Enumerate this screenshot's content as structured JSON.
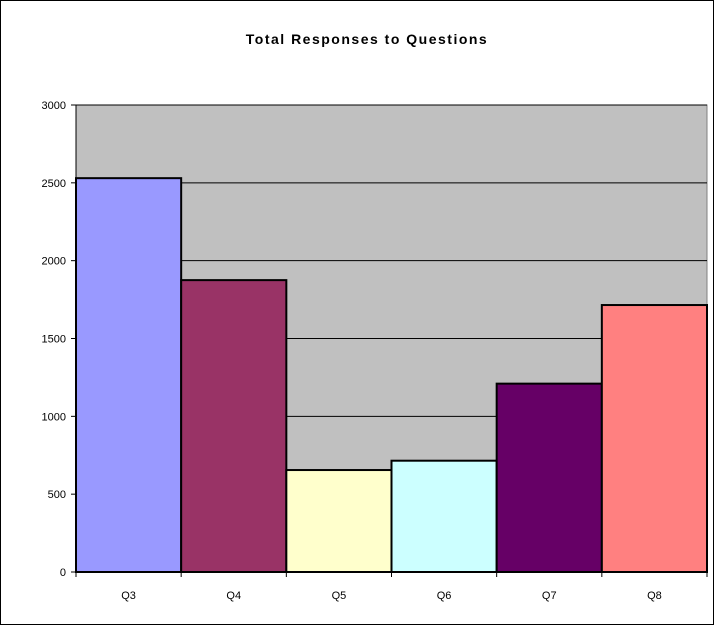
{
  "chart_data": {
    "type": "bar",
    "title": "Total Responses to Questions",
    "xlabel": "",
    "ylabel": "",
    "categories": [
      "Q3",
      "Q4",
      "Q5",
      "Q6",
      "Q7",
      "Q8"
    ],
    "values": [
      2530,
      1875,
      655,
      715,
      1210,
      1715
    ],
    "colors": [
      "#9999ff",
      "#993366",
      "#ffffcc",
      "#ccffff",
      "#660066",
      "#ff8080"
    ],
    "ylim": [
      0,
      3000
    ],
    "yticks": [
      "0",
      "500",
      "1000",
      "1500",
      "2000",
      "2500",
      "3000"
    ],
    "ytick_values": [
      0,
      500,
      1000,
      1500,
      2000,
      2500,
      3000
    ],
    "plot_background": "#c0c0c0",
    "grid": true,
    "legend": "none"
  }
}
